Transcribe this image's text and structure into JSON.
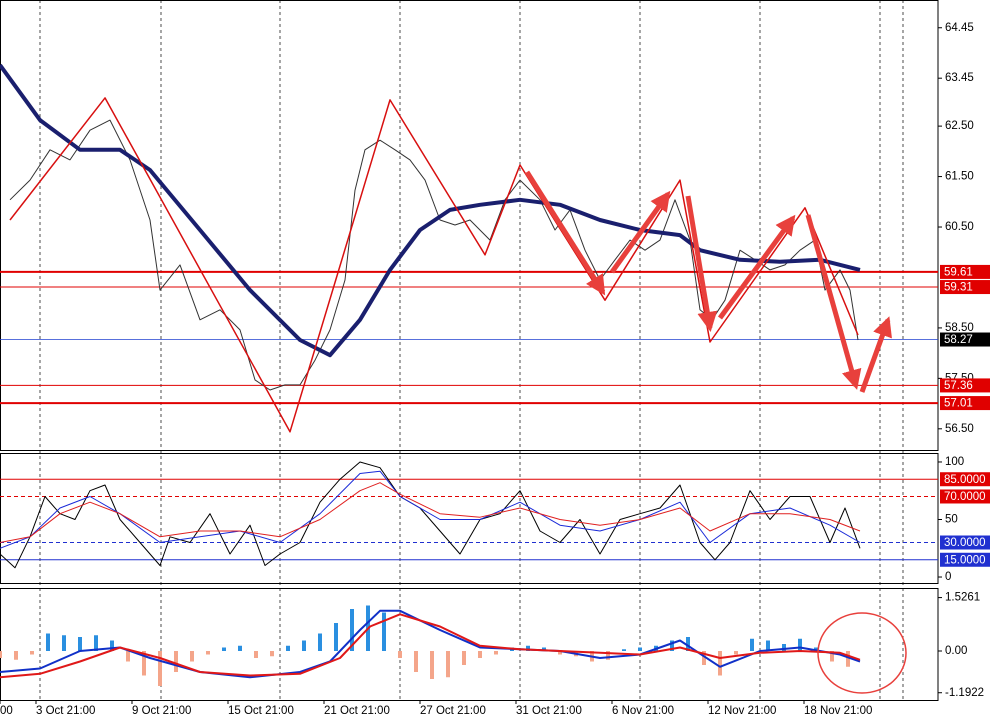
{
  "chart_data": [
    {
      "type": "line",
      "xlim": [
        0,
        234.5
      ],
      "ylim": [
        56.08,
        65.0
      ],
      "yticks": [
        {
          "value": 64.45,
          "label": "64.45"
        },
        {
          "value": 63.45,
          "label": "63.45"
        },
        {
          "value": 62.5,
          "label": "62.50"
        },
        {
          "value": 61.5,
          "label": "61.50"
        },
        {
          "value": 60.5,
          "label": "60.50"
        },
        {
          "value": 58.5,
          "label": "58.50"
        },
        {
          "value": 57.5,
          "label": "57.50"
        },
        {
          "value": 56.5,
          "label": "56.50"
        }
      ],
      "levels": [
        {
          "value": 59.61,
          "color": "#e00000",
          "width": 2,
          "label_bg": "#e00000"
        },
        {
          "value": 59.31,
          "color": "#e00000",
          "width": 1,
          "label_bg": "#e00000"
        },
        {
          "value": 58.27,
          "color": "#2040d0",
          "width": 0.7,
          "label_bg": "#000000"
        },
        {
          "value": 57.36,
          "color": "#e00000",
          "width": 1,
          "label_bg": "#e00000"
        },
        {
          "value": 57.01,
          "color": "#e00000",
          "width": 2,
          "label_bg": "#e00000"
        }
      ],
      "series": [
        {
          "color": "#333333",
          "width": 1,
          "x": [
            2.5,
            7.5,
            12.5,
            17.5,
            22.5,
            27.5,
            32.5,
            37.5,
            40,
            45,
            50,
            55,
            60,
            63.75,
            67.5,
            71.25,
            75,
            78.75,
            82.5,
            86.25,
            88.75,
            91.25,
            95,
            98.75,
            102.5,
            106.25,
            110,
            113.75,
            117.5,
            122.5,
            126.25,
            130,
            135,
            138.75,
            142.5,
            146.25,
            150,
            153.75,
            157.5,
            161.25,
            165,
            168.75,
            172.5,
            175,
            178,
            181.25,
            185,
            188.75,
            192.5,
            196.25,
            200,
            203.75,
            206.25,
            210,
            212.5,
            214.5
          ],
          "values": [
            61.04,
            61.43,
            62.03,
            61.83,
            62.42,
            62.62,
            61.83,
            60.64,
            59.25,
            59.75,
            58.66,
            58.86,
            58.46,
            57.47,
            57.27,
            57.37,
            57.37,
            57.86,
            58.46,
            59.45,
            61.23,
            62.03,
            62.22,
            62.03,
            61.83,
            61.43,
            60.64,
            60.54,
            60.64,
            60.24,
            61.04,
            61.43,
            61.04,
            60.44,
            60.84,
            60.04,
            59.45,
            59.85,
            60.24,
            60.04,
            60.24,
            61.04,
            60.24,
            58.86,
            58.66,
            59.05,
            60.04,
            59.85,
            59.65,
            59.75,
            60.04,
            60.24,
            59.25,
            59.65,
            59.25,
            58.26
          ]
        },
        {
          "color": "#1a1f6e",
          "width": 4,
          "x": [
            0,
            10,
            20,
            30,
            37.5,
            50,
            62.5,
            75,
            82.5,
            90,
            97.5,
            105,
            112.5,
            120,
            130,
            140,
            150,
            160,
            170,
            175,
            185,
            195,
            205,
            215
          ],
          "values": [
            63.71,
            62.62,
            62.03,
            62.03,
            61.63,
            60.44,
            59.25,
            58.26,
            57.96,
            58.66,
            59.65,
            60.44,
            60.84,
            60.94,
            61.04,
            60.94,
            60.64,
            60.44,
            60.34,
            60.04,
            59.85,
            59.81,
            59.85,
            59.65
          ]
        },
        {
          "color": "#d81010",
          "width": 1.5,
          "x": [
            2.5,
            26.25,
            72.5,
            97.5,
            121.25,
            130,
            151.25,
            170,
            177.5,
            201.25,
            214.5
          ],
          "values": [
            60.64,
            63.06,
            56.44,
            63.02,
            59.95,
            61.73,
            59.05,
            61.43,
            58.22,
            60.88,
            58.36
          ]
        }
      ]
    },
    {
      "type": "line",
      "xlim": [
        0,
        234.5
      ],
      "ylim": [
        -5.2,
        107.8
      ],
      "yticks": [
        100,
        50,
        0
      ],
      "levels": [
        {
          "value": 85,
          "label": "85.0000",
          "color": "#e00000",
          "dash": false,
          "label_bg": "#e00000"
        },
        {
          "value": 70,
          "label": "70.0000",
          "color": "#e00000",
          "dash": true,
          "label_bg": "#e00000"
        },
        {
          "value": 30,
          "label": "30.0000",
          "color": "#2030d0",
          "dash": true,
          "label_bg": "#2030d0"
        },
        {
          "value": 15,
          "label": "15.0000",
          "color": "#2030d0",
          "dash": false,
          "label_bg": "#2030d0"
        }
      ],
      "series": [
        {
          "color": "#000000",
          "width": 1,
          "x": [
            0,
            3.75,
            7.5,
            11.25,
            15,
            18.75,
            22.5,
            26.25,
            30,
            35,
            40,
            42.5,
            47.5,
            52.5,
            57.5,
            62.5,
            66.25,
            70,
            75,
            80,
            85,
            90,
            95,
            100,
            105,
            110,
            115,
            120,
            125,
            130,
            135,
            140,
            145,
            150,
            155,
            160,
            165,
            170,
            175,
            178.75,
            182.5,
            187.5,
            192.5,
            197.5,
            202.5,
            207.5,
            211.25,
            215
          ],
          "values": [
            20,
            8,
            35,
            70,
            55,
            50,
            75,
            80,
            50,
            30,
            10,
            35,
            30,
            55,
            20,
            45,
            10,
            20,
            30,
            65,
            85,
            100,
            95,
            70,
            60,
            40,
            20,
            50,
            55,
            75,
            40,
            30,
            50,
            20,
            50,
            55,
            60,
            80,
            30,
            15,
            30,
            75,
            50,
            70,
            70,
            30,
            60,
            25
          ]
        },
        {
          "color": "#1a2ad8",
          "width": 1,
          "x": [
            0,
            7.5,
            15,
            22.5,
            30,
            40,
            50,
            60,
            70,
            80,
            90,
            95,
            100,
            110,
            120,
            130,
            140,
            150,
            160,
            170,
            177.5,
            187.5,
            197.5,
            207.5,
            215
          ],
          "values": [
            25,
            35,
            60,
            70,
            55,
            30,
            35,
            40,
            30,
            55,
            90,
            92,
            70,
            50,
            50,
            65,
            45,
            40,
            50,
            65,
            30,
            55,
            60,
            45,
            30
          ]
        },
        {
          "color": "#e02020",
          "width": 1,
          "x": [
            0,
            7.5,
            15,
            22.5,
            30,
            40,
            50,
            60,
            70,
            80,
            90,
            95,
            100,
            110,
            120,
            130,
            140,
            150,
            160,
            170,
            177.5,
            187.5,
            197.5,
            207.5,
            215
          ],
          "values": [
            30,
            35,
            55,
            65,
            55,
            35,
            40,
            40,
            35,
            50,
            75,
            82,
            72,
            55,
            52,
            60,
            50,
            45,
            50,
            60,
            40,
            55,
            55,
            50,
            40
          ]
        }
      ]
    },
    {
      "type": "line",
      "xlim": [
        0,
        234.5
      ],
      "ylim": [
        -1.4,
        1.8
      ],
      "yticks": [
        1.5261,
        {
          "value": 0,
          "label": "0.00"
        },
        -1.1922
      ],
      "xticks": [
        {
          "value": 0,
          "label": "00"
        },
        {
          "value": 9,
          "label": "3 Oct 21:00"
        },
        {
          "value": 33,
          "label": "9 Oct 21:00"
        },
        {
          "value": 57,
          "label": "15 Oct 21:00"
        },
        {
          "value": 81,
          "label": "21 Oct 21:00"
        },
        {
          "value": 105,
          "label": "27 Oct 21:00"
        },
        {
          "value": 129,
          "label": "31 Oct 21:00"
        },
        {
          "value": 153,
          "label": "6 Nov 21:00"
        },
        {
          "value": 177,
          "label": "12 Nov 21:00"
        },
        {
          "value": 201,
          "label": "18 Nov 21:00"
        }
      ],
      "series": [
        {
          "type": "bar",
          "color": "#2a8fe0",
          "neg_color": "#f4a58a",
          "x": [
            0,
            4,
            8,
            12,
            16,
            20,
            24,
            28,
            32,
            36,
            40,
            44,
            48,
            52,
            56,
            60,
            64,
            68,
            72,
            76,
            80,
            84,
            88,
            92,
            96,
            100,
            104,
            108,
            112,
            116,
            120,
            124,
            128,
            132,
            136,
            140,
            144,
            148,
            152,
            156,
            160,
            164,
            168,
            172,
            176,
            180,
            184,
            188,
            192,
            196,
            200,
            204,
            208,
            212
          ],
          "values": [
            -0.2,
            -0.25,
            -0.1,
            0.5,
            0.45,
            0.4,
            0.45,
            0.3,
            -0.3,
            -0.7,
            -1.0,
            -0.6,
            -0.3,
            -0.1,
            0.1,
            0.15,
            -0.2,
            -0.15,
            0.15,
            0.3,
            0.5,
            0.8,
            1.2,
            1.3,
            1.1,
            -0.2,
            -0.6,
            -0.8,
            -0.75,
            -0.4,
            -0.2,
            -0.1,
            0.1,
            0.15,
            0.1,
            -0.1,
            -0.15,
            -0.3,
            -0.25,
            0.05,
            0.1,
            0.15,
            0.3,
            0.4,
            -0.4,
            -0.7,
            -0.1,
            0.35,
            0.3,
            0.2,
            0.35,
            0.1,
            -0.3,
            -0.45
          ]
        },
        {
          "color": "#1030c8",
          "width": 2,
          "x": [
            0,
            10,
            20,
            30,
            37.5,
            50,
            62.5,
            75,
            82.5,
            90,
            95,
            100,
            110,
            120,
            130,
            140,
            150,
            160,
            170,
            180,
            190,
            200,
            210,
            215
          ],
          "values": [
            -0.6,
            -0.5,
            0.0,
            0.1,
            -0.2,
            -0.6,
            -0.75,
            -0.6,
            -0.3,
            0.6,
            1.15,
            1.15,
            0.6,
            0.1,
            0.05,
            0.0,
            -0.2,
            -0.1,
            0.3,
            -0.45,
            0.0,
            0.1,
            -0.1,
            -0.3
          ]
        },
        {
          "color": "#e01818",
          "width": 2,
          "x": [
            0,
            10,
            20,
            30,
            40,
            50,
            62.5,
            75,
            85,
            92.5,
            100,
            110,
            120,
            130,
            140,
            150,
            160,
            170,
            180,
            190,
            200,
            210,
            215
          ],
          "values": [
            -0.75,
            -0.65,
            -0.3,
            0.1,
            -0.2,
            -0.6,
            -0.7,
            -0.65,
            -0.2,
            0.7,
            1.05,
            0.7,
            0.15,
            0.05,
            0,
            -0.05,
            -0.1,
            0.1,
            -0.2,
            -0.05,
            0,
            -0.05,
            -0.25
          ]
        }
      ]
    }
  ]
}
